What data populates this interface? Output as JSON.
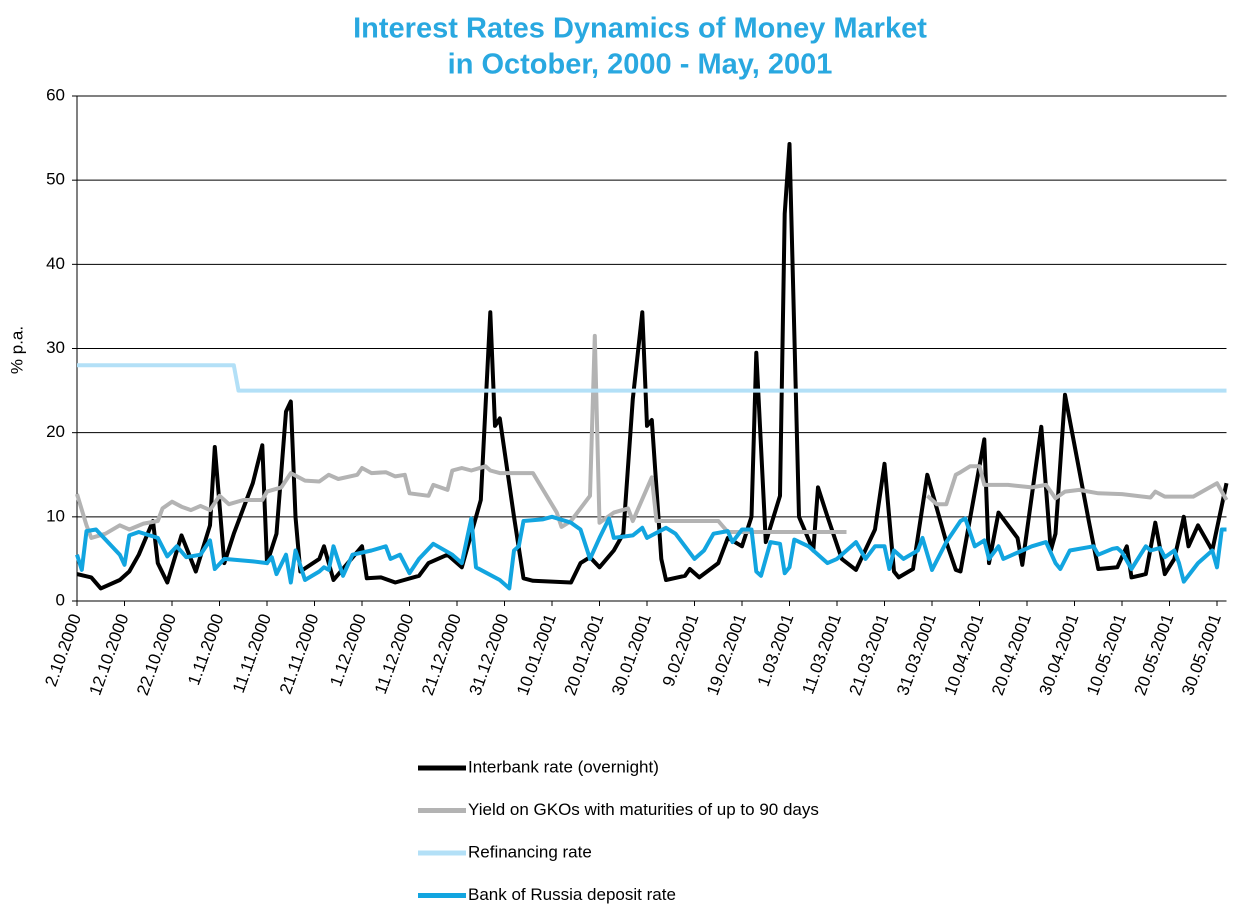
{
  "chart_data": {
    "type": "line",
    "title": [
      "Interest Rates Dynamics of Money Market",
      "in October, 2000 - May, 2001"
    ],
    "y_label": "% p.a.",
    "xlim": [
      "2.10.2000",
      "1.06.2001"
    ],
    "ylim": [
      0,
      60
    ],
    "yticks": [
      0,
      10,
      20,
      30,
      40,
      50,
      60
    ],
    "xticks": [
      "2.10.2000",
      "12.10.2000",
      "22.10.2000",
      "1.11.2000",
      "11.11.2000",
      "21.11.2000",
      "1.12.2000",
      "11.12.2000",
      "21.12.2000",
      "31.12.2000",
      "10.01.2001",
      "20.01.2001",
      "30.01.2001",
      "9.02.2001",
      "19.02.2001",
      "1.03.2001",
      "11.03.2001",
      "21.03.2001",
      "31.03.2001",
      "10.04.2001",
      "20.04.2001",
      "30.04.2001",
      "10.05.2001",
      "20.05.2001",
      "30.05.2001"
    ],
    "grid": true,
    "legend": "bottom",
    "series": [
      {
        "name": "Interbank rate (overnight)",
        "color": "#000000",
        "x": [
          "2.10.2000",
          "5.10.2000",
          "7.10.2000",
          "11.10.2000",
          "13.10.2000",
          "15.10.2000",
          "18.10.2000",
          "19.10.2000",
          "21.10.2000",
          "24.10.2000",
          "27.10.2000",
          "30.10.2000",
          "31.10.2000",
          "2.11.2000",
          "4.11.2000",
          "8.11.2000",
          "10.11.2000",
          "11.11.2000",
          "13.11.2000",
          "15.11.2000",
          "16.11.2000",
          "17.11.2000",
          "18.11.2000",
          "22.11.2000",
          "23.11.2000",
          "25.11.2000",
          "1.12.2000",
          "2.12.2000",
          "5.12.2000",
          "8.12.2000",
          "13.12.2000",
          "15.12.2000",
          "19.12.2000",
          "22.12.2000",
          "26.12.2000",
          "28.12.2000",
          "29.12.2000",
          "30.12.2000",
          "2.01.2001",
          "4.01.2001",
          "6.01.2001",
          "14.01.2001",
          "16.01.2001",
          "18.01.2001",
          "20.01.2001",
          "23.01.2001",
          "25.01.2001",
          "27.01.2001",
          "29.01.2001",
          "30.01.2001",
          "31.01.2001",
          "2.02.2001",
          "3.02.2001",
          "7.02.2001",
          "8.02.2001",
          "10.02.2001",
          "14.02.2001",
          "16.02.2001",
          "19.02.2001",
          "21.02.2001",
          "22.02.2001",
          "24.02.2001",
          "27.02.2001",
          "28.02.2001",
          "1.03.2001",
          "3.03.2001",
          "6.03.2001",
          "7.03.2001",
          "9.03.2001",
          "12.03.2001",
          "15.03.2001",
          "19.03.2001",
          "21.03.2001",
          "23.03.2001",
          "24.03.2001",
          "27.03.2001",
          "30.03.2001",
          "3.04.2001",
          "5.04.2001",
          "6.04.2001",
          "11.04.2001",
          "12.04.2001",
          "14.04.2001",
          "18.04.2001",
          "19.04.2001",
          "23.04.2001",
          "25.04.2001",
          "26.04.2001",
          "28.04.2001",
          "3.05.2001",
          "5.05.2001",
          "9.05.2001",
          "11.05.2001",
          "12.05.2001",
          "15.05.2001",
          "17.05.2001",
          "19.05.2001",
          "21.05.2001",
          "23.05.2001",
          "24.05.2001",
          "26.05.2001",
          "29.05.2001",
          "1.06.2001"
        ],
        "values": [
          3.2,
          2.8,
          1.5,
          2.5,
          3.5,
          5.5,
          9.5,
          4.5,
          2.2,
          7.8,
          3.5,
          9,
          18.3,
          4.5,
          8,
          14,
          18.5,
          4.5,
          8,
          22.5,
          23.7,
          10,
          3.5,
          5,
          6.5,
          2.5,
          6.5,
          2.7,
          2.8,
          2.2,
          3,
          4.5,
          5.5,
          4,
          12,
          34.3,
          20.8,
          21.7,
          10,
          2.7,
          2.4,
          2.2,
          4.5,
          5.2,
          4,
          6,
          8,
          24,
          34.3,
          20.8,
          21.5,
          5,
          2.5,
          3,
          3.8,
          2.8,
          4.5,
          7.5,
          6.5,
          10,
          29.5,
          7,
          12.5,
          46,
          54.3,
          10,
          6,
          13.5,
          10,
          5,
          3.7,
          8.5,
          16.3,
          3.5,
          2.8,
          3.8,
          15,
          7,
          3.7,
          3.5,
          19.2,
          4.5,
          10.5,
          7.5,
          4.3,
          20.7,
          6,
          8,
          24.5,
          9.5,
          3.8,
          4,
          6.5,
          2.8,
          3.2,
          9.3,
          3.2,
          5,
          10,
          6.5,
          9,
          6,
          14
        ]
      },
      {
        "name": "Yield on GKOs with maturities of up to 90 days",
        "color": "#b3b3b3",
        "x": [
          "2.10.2000",
          "4.10.2000",
          "5.10.2000",
          "8.10.2000",
          "11.10.2000",
          "13.10.2000",
          "16.10.2000",
          "19.10.2000",
          "20.10.2000",
          "22.10.2000",
          "24.10.2000",
          "26.10.2000",
          "28.10.2000",
          "30.10.2000",
          "1.11.2000",
          "3.11.2000",
          "6.11.2000",
          "10.11.2000",
          "11.11.2000",
          "14.11.2000",
          "16.11.2000",
          "19.11.2000",
          "22.11.2000",
          "24.11.2000",
          "26.11.2000",
          "30.11.2000",
          "1.12.2000",
          "3.12.2000",
          "6.12.2000",
          "8.12.2000",
          "10.12.2000",
          "11.12.2000",
          "15.12.2000",
          "16.12.2000",
          "19.12.2000",
          "20.12.2000",
          "22.12.2000",
          "24.12.2000",
          "27.12.2000",
          "28.12.2000",
          "30.12.2000",
          "6.01.2001",
          "11.01.2001",
          "12.01.2001",
          "14.01.2001",
          "18.01.2001",
          "19.01.2001",
          "20.01.2001",
          "23.01.2001",
          "26.01.2001",
          "27.01.2001",
          "31.01.2001",
          "1.02.2001",
          "14.02.2001",
          "16.02.2001",
          "13.03.2001",
          "21.03.2001",
          "30.03.2001",
          "1.04.2001",
          "3.04.2001",
          "5.04.2001",
          "6.04.2001",
          "8.04.2001",
          "10.04.2001",
          "11.04.2001",
          "16.04.2001",
          "21.04.2001",
          "24.04.2001",
          "26.04.2001",
          "28.04.2001",
          "1.05.2001",
          "5.05.2001",
          "10.05.2001",
          "16.05.2001",
          "17.05.2001",
          "19.05.2001",
          "25.05.2001",
          "30.05.2001",
          "1.06.2001"
        ],
        "values": [
          12.7,
          9,
          7.5,
          8,
          9,
          8.5,
          9.2,
          9.5,
          11,
          11.8,
          11.2,
          10.8,
          11.3,
          10.8,
          12.5,
          11.5,
          12,
          12,
          13,
          13.5,
          15.2,
          14.3,
          14.2,
          15,
          14.5,
          15,
          15.8,
          15.2,
          15.3,
          14.8,
          15,
          12.8,
          12.5,
          13.8,
          13.2,
          15.5,
          15.8,
          15.5,
          16,
          15.5,
          15.2,
          15.2,
          10.5,
          8.8,
          9.5,
          12.5,
          31.5,
          9.3,
          10.5,
          11,
          9.5,
          14.7,
          9.5,
          9.5,
          8.2,
          8.2,
          null,
          12.5,
          11.5,
          11.5,
          15,
          15.3,
          16,
          16,
          13.8,
          13.8,
          13.5,
          13.8,
          12.2,
          13,
          13.2,
          12.8,
          12.7,
          12.3,
          13,
          12.4,
          12.4,
          14,
          12
        ]
      },
      {
        "name": "Refinancing rate",
        "color": "#b3e0f7",
        "x": [
          "2.10.2000",
          "4.11.2000",
          "5.11.2000",
          "1.06.2001"
        ],
        "values": [
          28,
          28,
          25,
          25
        ]
      },
      {
        "name": "Bank of Russia deposit rate",
        "color": "#12a5e0",
        "x": [
          "2.10.2000",
          "3.10.2000",
          "4.10.2000",
          "6.10.2000",
          "11.10.2000",
          "12.10.2000",
          "13.10.2000",
          "15.10.2000",
          "19.10.2000",
          "21.10.2000",
          "23.10.2000",
          "25.10.2000",
          "28.10.2000",
          "30.10.2000",
          "31.10.2000",
          "2.11.2000",
          "8.11.2000",
          "11.11.2000",
          "12.11.2000",
          "13.11.2000",
          "15.11.2000",
          "16.11.2000",
          "17.11.2000",
          "19.11.2000",
          "22.11.2000",
          "23.11.2000",
          "24.11.2000",
          "25.11.2000",
          "27.11.2000",
          "29.11.2000",
          "3.12.2000",
          "6.12.2000",
          "7.12.2000",
          "9.12.2000",
          "11.12.2000",
          "13.12.2000",
          "16.12.2000",
          "20.12.2000",
          "22.12.2000",
          "24.12.2000",
          "25.12.2000",
          "30.12.2000",
          "1.01.2001",
          "2.01.2001",
          "3.01.2001",
          "4.01.2001",
          "8.01.2001",
          "10.01.2001",
          "14.01.2001",
          "16.01.2001",
          "18.01.2001",
          "20.01.2001",
          "22.01.2001",
          "23.01.2001",
          "27.01.2001",
          "29.01.2001",
          "30.01.2001",
          "3.02.2001",
          "5.02.2001",
          "7.02.2001",
          "9.02.2001",
          "11.02.2001",
          "13.02.2001",
          "16.02.2001",
          "17.02.2001",
          "19.02.2001",
          "21.02.2001",
          "22.02.2001",
          "23.02.2001",
          "25.02.2001",
          "27.02.2001",
          "28.02.2001",
          "1.03.2001",
          "2.03.2001",
          "5.03.2001",
          "9.03.2001",
          "11.03.2001",
          "15.03.2001",
          "17.03.2001",
          "19.03.2001",
          "21.03.2001",
          "22.03.2001",
          "23.03.2001",
          "25.03.2001",
          "28.03.2001",
          "29.03.2001",
          "31.03.2001",
          "3.04.2001",
          "6.04.2001",
          "7.04.2001",
          "9.04.2001",
          "11.04.2001",
          "12.04.2001",
          "14.04.2001",
          "15.04.2001",
          "19.04.2001",
          "21.04.2001",
          "24.04.2001",
          "26.04.2001",
          "27.04.2001",
          "29.04.2001",
          "4.05.2001",
          "5.05.2001",
          "8.05.2001",
          "9.05.2001",
          "10.05.2001",
          "12.05.2001",
          "15.05.2001",
          "16.05.2001",
          "18.05.2001",
          "19.05.2001",
          "21.05.2001",
          "22.05.2001",
          "23.05.2001",
          "26.05.2001",
          "29.05.2001",
          "30.05.2001",
          "31.05.2001",
          "1.06.2001"
        ],
        "values": [
          5.5,
          3.7,
          8.3,
          8.5,
          5.5,
          4.3,
          7.8,
          8.2,
          7.5,
          5.3,
          6.5,
          5.2,
          5.5,
          7.2,
          3.8,
          5,
          4.7,
          4.5,
          5.2,
          3.2,
          5.5,
          2.2,
          6,
          2.5,
          3.5,
          4,
          3.7,
          6.5,
          3,
          5.5,
          6,
          6.5,
          5,
          5.5,
          3.3,
          5,
          6.8,
          5.5,
          4.5,
          9.8,
          4,
          2.5,
          1.5,
          6,
          6.5,
          9.5,
          9.7,
          10,
          9.3,
          8.5,
          5,
          7.5,
          9.8,
          7.5,
          7.8,
          8.7,
          7.5,
          8.7,
          8,
          6.5,
          5,
          6,
          8,
          8.3,
          7,
          8.5,
          8.5,
          3.5,
          3,
          7,
          6.8,
          3.3,
          4,
          7.3,
          6.5,
          4.5,
          5,
          7,
          5,
          6.5,
          6.5,
          3.8,
          6,
          5,
          6,
          7.5,
          3.7,
          7,
          9.5,
          9.8,
          6.5,
          7.2,
          5,
          6.5,
          5,
          6,
          6.5,
          7,
          4.5,
          3.8,
          6,
          6.5,
          5.5,
          6.2,
          6.3,
          5.8,
          3.8,
          6.5,
          6,
          6.3,
          5.2,
          6,
          4.5,
          2.3,
          4.5,
          6,
          4,
          8.5,
          8.5
        ]
      }
    ]
  }
}
